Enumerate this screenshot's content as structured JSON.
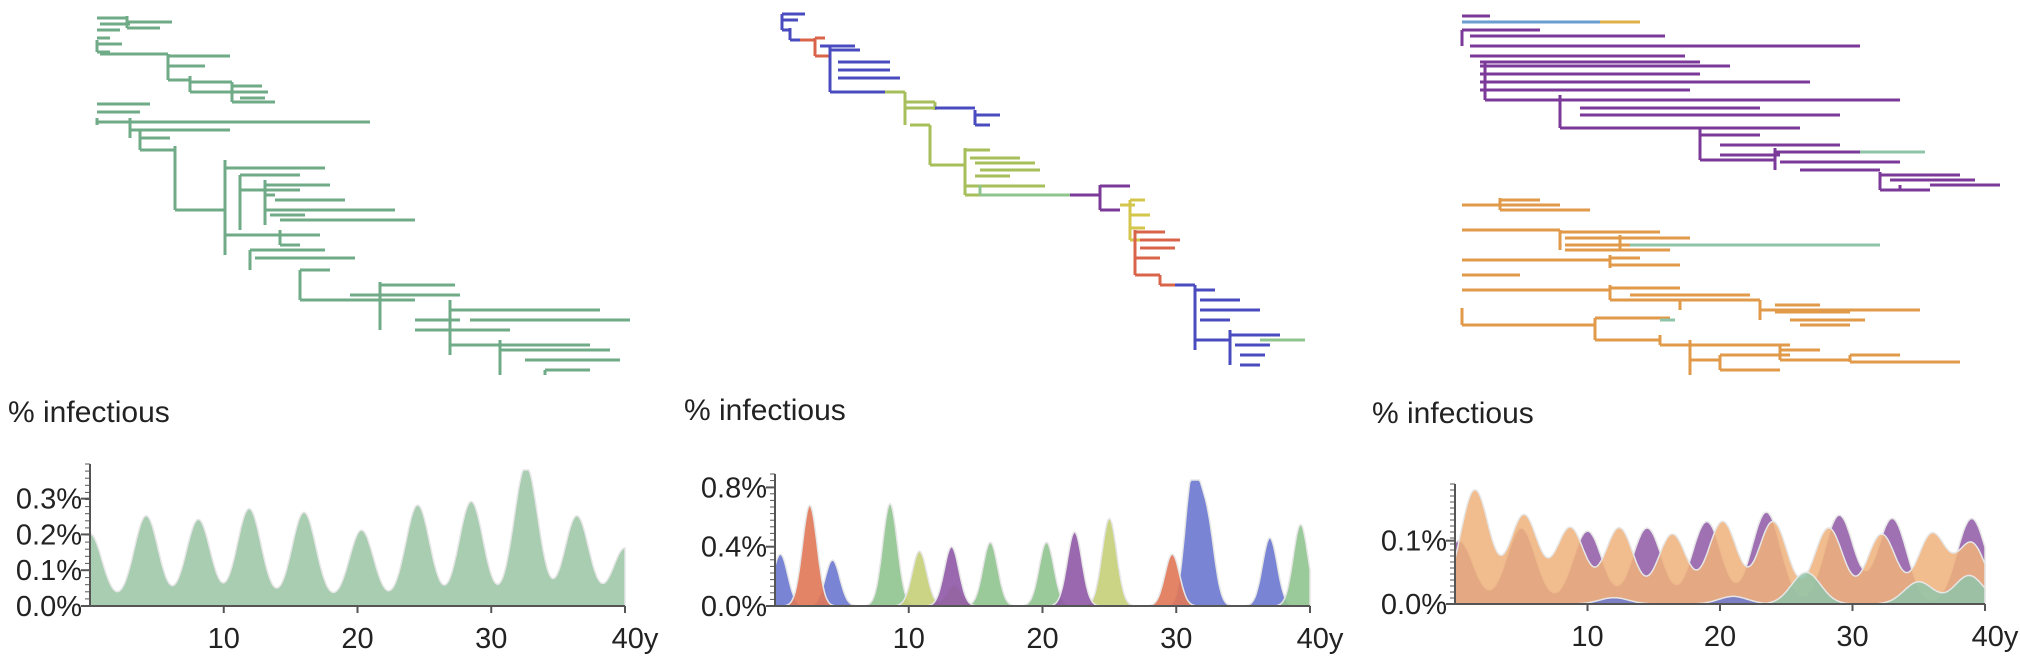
{
  "panels": [
    {
      "id": "left",
      "colors": {
        "main": "#6fab86",
        "fill": "#9fc8a9"
      },
      "chart_data": {
        "type": "area",
        "title": "",
        "ylabel": "% infectious",
        "xlabel": "",
        "xlim": [
          0,
          40
        ],
        "ylim": [
          0,
          0.38
        ],
        "x_ticks": [
          10,
          20,
          30,
          40
        ],
        "x_tick_labels": [
          "10",
          "20",
          "30",
          "40y"
        ],
        "y_ticks": [
          0.0,
          0.1,
          0.2,
          0.3
        ],
        "y_tick_labels": [
          "0.0%",
          "0.1%",
          "0.2%",
          "0.3%"
        ],
        "grid": false,
        "series": [
          {
            "color": "#9fc8a9",
            "peaks": [
              [
                0,
                0.19
              ],
              [
                4.2,
                0.24
              ],
              [
                8.1,
                0.23
              ],
              [
                11.9,
                0.26
              ],
              [
                16.0,
                0.25
              ],
              [
                20.3,
                0.2
              ],
              [
                24.5,
                0.27
              ],
              [
                28.5,
                0.28
              ],
              [
                32.6,
                0.38
              ],
              [
                36.4,
                0.24
              ],
              [
                40,
                0.15
              ]
            ]
          }
        ]
      }
    },
    {
      "id": "middle",
      "chart_data": {
        "type": "area",
        "title": "",
        "ylabel": "% infectious",
        "xlabel": "",
        "xlim": [
          0,
          40
        ],
        "ylim": [
          0,
          0.85
        ],
        "x_ticks": [
          10,
          20,
          30,
          40
        ],
        "x_tick_labels": [
          "10",
          "20",
          "30",
          "40y"
        ],
        "y_ticks": [
          0.0,
          0.4,
          0.8
        ],
        "y_tick_labels": [
          "0.0%",
          "0.4%",
          "0.8%"
        ],
        "grid": false,
        "series": [
          {
            "color": "#6a78cf",
            "peaks": [
              [
                0.4,
                0.35
              ],
              [
                4.3,
                0.31
              ],
              [
                31.2,
                0.85
              ],
              [
                32.3,
                0.56
              ],
              [
                37.0,
                0.46
              ]
            ]
          },
          {
            "color": "#e07757",
            "peaks": [
              [
                2.6,
                0.68
              ],
              [
                29.7,
                0.35
              ]
            ]
          },
          {
            "color": "#8fc48f",
            "peaks": [
              [
                8.6,
                0.69
              ],
              [
                16.1,
                0.43
              ],
              [
                20.3,
                0.43
              ],
              [
                39.3,
                0.55
              ]
            ]
          },
          {
            "color": "#c5cf78",
            "peaks": [
              [
                10.8,
                0.37
              ],
              [
                13.4,
                0.14
              ],
              [
                25.0,
                0.59
              ]
            ]
          },
          {
            "color": "#8e58a6",
            "peaks": [
              [
                13.2,
                0.4
              ],
              [
                22.4,
                0.5
              ]
            ]
          }
        ]
      }
    },
    {
      "id": "right",
      "chart_data": {
        "type": "area",
        "title": "",
        "ylabel": "% infectious",
        "xlabel": "",
        "xlim": [
          0,
          40
        ],
        "ylim": [
          0,
          0.18
        ],
        "x_ticks": [
          10,
          20,
          30,
          40
        ],
        "x_tick_labels": [
          "10",
          "20",
          "30",
          "40y"
        ],
        "y_ticks": [
          0.0,
          0.1
        ],
        "y_tick_labels": [
          "0.0%",
          "0.1%"
        ],
        "grid": false,
        "series": [
          {
            "color": "#8e58a6",
            "peaks": [
              [
                0.3,
                0.1
              ],
              [
                5.0,
                0.12
              ],
              [
                10.0,
                0.115
              ],
              [
                14.5,
                0.12
              ],
              [
                19.0,
                0.13
              ],
              [
                23.5,
                0.145
              ],
              [
                29.0,
                0.14
              ],
              [
                33.0,
                0.135
              ],
              [
                39.0,
                0.135
              ]
            ]
          },
          {
            "color": "#f0b27a",
            "peaks": [
              [
                1.5,
                0.18
              ],
              [
                5.2,
                0.14
              ],
              [
                8.7,
                0.12
              ],
              [
                12.4,
                0.12
              ],
              [
                16.4,
                0.11
              ],
              [
                20.2,
                0.13
              ],
              [
                24.0,
                0.13
              ],
              [
                28.2,
                0.12
              ],
              [
                32.2,
                0.11
              ],
              [
                36.0,
                0.11
              ],
              [
                39.0,
                0.095
              ]
            ]
          },
          {
            "color": "#8fc4a9",
            "peaks": [
              [
                26.5,
                0.05
              ],
              [
                35.0,
                0.035
              ],
              [
                38.8,
                0.045
              ]
            ]
          },
          {
            "color": "#6a78cf",
            "peaks": [
              [
                12.0,
                0.01
              ],
              [
                21.0,
                0.012
              ]
            ]
          }
        ]
      }
    }
  ]
}
